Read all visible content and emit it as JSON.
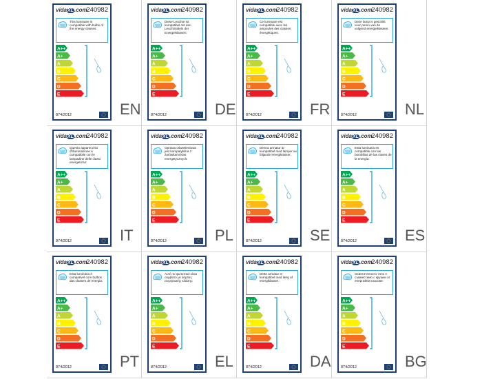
{
  "label": {
    "logo": {
      "left": "vida",
      "mark": "XL",
      "right": ".com"
    },
    "product_number": "240982",
    "classes": [
      "A++",
      "A+",
      "A",
      "B",
      "C",
      "D",
      "E"
    ],
    "regulation": "874/2012",
    "panels": [
      {
        "code": "EN",
        "description": "This luminaire is compatible with bulbs of the energy classes:"
      },
      {
        "code": "DE",
        "description": "Diese Leuchte ist kompatibel mit den Leuchtmitteln der Energieklassen:"
      },
      {
        "code": "FR",
        "description": "Ce luminaire est compatible avec les ampoules des classes énergétiques:"
      },
      {
        "code": "NL",
        "description": "Deze lamp is geschikt voor peren van de volgend energieklassen:"
      },
      {
        "code": "IT",
        "description": "Questo apparecchio d'illuminazione è compatibile con le lampadine delle classi energetiche:"
      },
      {
        "code": "PL",
        "description": "Oprawa oświetleniowa jest kompatybilna z żarówkami klas energetycznych:"
      },
      {
        "code": "SE",
        "description": "Denna armatur är kompatibel med lampor av följande energiklasser:"
      },
      {
        "code": "ES",
        "description": "Esta luminaria es compatible con las bombillas de las clases de la energía:"
      },
      {
        "code": "PT",
        "description": "Esta luminária é compatível com bulbos das classes de energia:"
      },
      {
        "code": "EL",
        "description": "Αυτό το φωτιστικό είναι συμβατό με λάμπες ενεργειακής κλάσης:"
      },
      {
        "code": "DA",
        "description": "Dette armatur er kompatibel med lærg af energiklasser:"
      },
      {
        "code": "BG",
        "description": "Осветителното тяло е съвместимо с крушки от енергийни класове:"
      }
    ]
  }
}
